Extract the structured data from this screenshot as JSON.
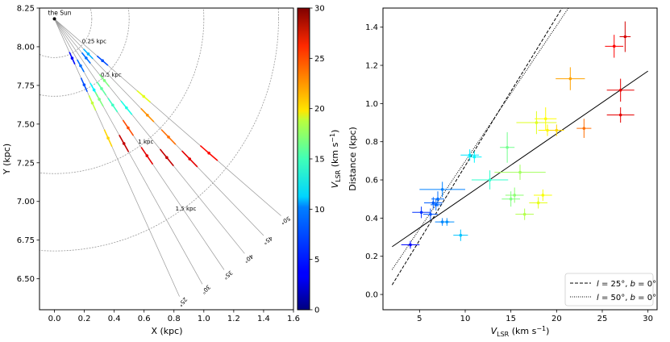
{
  "chart_data": [
    {
      "type": "scatter",
      "title": "",
      "xlabel": "X (kpc)",
      "ylabel": "Y (kpc)",
      "xlim": [
        -0.1,
        1.6
      ],
      "ylim": [
        6.3,
        8.25
      ],
      "xticks": [
        "0.0",
        "0.2",
        "0.4",
        "0.6",
        "0.8",
        "1.0",
        "1.2",
        "1.4",
        "1.6"
      ],
      "xtick_values": [
        0,
        0.2,
        0.4,
        0.6,
        0.8,
        1.0,
        1.2,
        1.4,
        1.6
      ],
      "yticks": [
        "6.50",
        "6.75",
        "7.00",
        "7.25",
        "7.50",
        "7.75",
        "8.00",
        "8.25"
      ],
      "ytick_values": [
        6.5,
        6.75,
        7.0,
        7.25,
        7.5,
        7.75,
        8.0,
        8.25
      ],
      "sun": {
        "label": "the Sun",
        "x": 0,
        "y": 8.18
      },
      "circles": [
        {
          "label": "0.25 kpc",
          "r": 0.25
        },
        {
          "label": "0.5 kpc",
          "r": 0.5
        },
        {
          "label": "1 kpc",
          "r": 1.0
        },
        {
          "label": "1.5 kpc",
          "r": 1.5
        }
      ],
      "rays": [
        {
          "label": "25°",
          "l": 25
        },
        {
          "label": "30°",
          "l": 30
        },
        {
          "label": "35°",
          "l": 35
        },
        {
          "label": "40°",
          "l": 40
        },
        {
          "label": "45°",
          "l": 45
        },
        {
          "label": "50°",
          "l": 50
        }
      ],
      "clumps": [
        {
          "l": 25,
          "d": 0.28,
          "v": 4
        },
        {
          "l": 25,
          "d": 0.47,
          "v": 6
        },
        {
          "l": 25,
          "d": 0.6,
          "v": 17
        },
        {
          "l": 25,
          "d": 0.85,
          "v": 20
        },
        {
          "l": 30,
          "d": 0.35,
          "v": 7
        },
        {
          "l": 30,
          "d": 0.53,
          "v": 11
        },
        {
          "l": 30,
          "d": 0.6,
          "v": 15
        },
        {
          "l": 30,
          "d": 0.93,
          "v": 28
        },
        {
          "l": 35,
          "d": 0.55,
          "v": 14
        },
        {
          "l": 35,
          "d": 0.68,
          "v": 13
        },
        {
          "l": 35,
          "d": 0.86,
          "v": 24
        },
        {
          "l": 35,
          "d": 1.08,
          "v": 27
        },
        {
          "l": 40,
          "d": 0.33,
          "v": 7
        },
        {
          "l": 40,
          "d": 0.52,
          "v": 15
        },
        {
          "l": 40,
          "d": 0.75,
          "v": 12
        },
        {
          "l": 40,
          "d": 1.17,
          "v": 28
        },
        {
          "l": 45,
          "d": 0.32,
          "v": 9
        },
        {
          "l": 45,
          "d": 0.88,
          "v": 22
        },
        {
          "l": 45,
          "d": 1.08,
          "v": 23
        },
        {
          "l": 45,
          "d": 1.28,
          "v": 27
        },
        {
          "l": 50,
          "d": 0.42,
          "v": 6
        },
        {
          "l": 50,
          "d": 0.78,
          "v": 18
        },
        {
          "l": 50,
          "d": 1.35,
          "v": 26
        }
      ],
      "colorbar": {
        "label_main": "V",
        "label_sub": "LSR",
        "label_unit": " (km s",
        "label_exp": "−1",
        "label_end": ")",
        "min": 0,
        "max": 30,
        "ticks": [
          "0",
          "5",
          "10",
          "15",
          "20",
          "25",
          "30"
        ],
        "tick_values": [
          0,
          5,
          10,
          15,
          20,
          25,
          30
        ]
      }
    },
    {
      "type": "scatter",
      "title": "",
      "xlabel_main": "V",
      "xlabel_sub": "LSR",
      "xlabel_unit": " (km s",
      "xlabel_exp": "−1",
      "xlabel_end": ")",
      "ylabel": "Distance (kpc)",
      "xlim": [
        1,
        31
      ],
      "ylim": [
        -0.08,
        1.5
      ],
      "xticks": [
        "5",
        "10",
        "15",
        "20",
        "25",
        "30"
      ],
      "xtick_values": [
        5,
        10,
        15,
        20,
        25,
        30
      ],
      "yticks": [
        "0.0",
        "0.2",
        "0.4",
        "0.6",
        "0.8",
        "1.0",
        "1.2",
        "1.4"
      ],
      "ytick_values": [
        0,
        0.2,
        0.4,
        0.6,
        0.8,
        1.0,
        1.2,
        1.4
      ],
      "points": [
        {
          "v": 4.0,
          "d": 0.26,
          "ev": 1.0,
          "ed": 0.02
        },
        {
          "v": 5.2,
          "d": 0.43,
          "ev": 1.0,
          "ed": 0.03
        },
        {
          "v": 6.2,
          "d": 0.42,
          "ev": 0.8,
          "ed": 0.03
        },
        {
          "v": 6.5,
          "d": 0.48,
          "ev": 1.0,
          "ed": 0.03
        },
        {
          "v": 6.8,
          "d": 0.47,
          "ev": 0.6,
          "ed": 0.03
        },
        {
          "v": 7.0,
          "d": 0.5,
          "ev": 0.7,
          "ed": 0.04
        },
        {
          "v": 7.5,
          "d": 0.55,
          "ev": 2.5,
          "ed": 0.04
        },
        {
          "v": 7.5,
          "d": 0.38,
          "ev": 0.8,
          "ed": 0.02
        },
        {
          "v": 8.0,
          "d": 0.38,
          "ev": 0.8,
          "ed": 0.02
        },
        {
          "v": 9.5,
          "d": 0.31,
          "ev": 0.8,
          "ed": 0.03
        },
        {
          "v": 10.5,
          "d": 0.73,
          "ev": 1.0,
          "ed": 0.03
        },
        {
          "v": 11.0,
          "d": 0.72,
          "ev": 0.8,
          "ed": 0.03
        },
        {
          "v": 12.7,
          "d": 0.6,
          "ev": 2.0,
          "ed": 0.05
        },
        {
          "v": 14.6,
          "d": 0.77,
          "ev": 0.8,
          "ed": 0.08
        },
        {
          "v": 15.0,
          "d": 0.5,
          "ev": 1.0,
          "ed": 0.04
        },
        {
          "v": 15.4,
          "d": 0.52,
          "ev": 1.0,
          "ed": 0.04
        },
        {
          "v": 16.0,
          "d": 0.64,
          "ev": 2.8,
          "ed": 0.04
        },
        {
          "v": 16.5,
          "d": 0.42,
          "ev": 1.0,
          "ed": 0.03
        },
        {
          "v": 17.8,
          "d": 0.9,
          "ev": 2.2,
          "ed": 0.06
        },
        {
          "v": 18.0,
          "d": 0.48,
          "ev": 1.0,
          "ed": 0.03
        },
        {
          "v": 18.5,
          "d": 0.52,
          "ev": 1.0,
          "ed": 0.03
        },
        {
          "v": 18.8,
          "d": 0.92,
          "ev": 1.2,
          "ed": 0.06
        },
        {
          "v": 19.0,
          "d": 0.86,
          "ev": 1.0,
          "ed": 0.03
        },
        {
          "v": 20.0,
          "d": 0.86,
          "ev": 0.8,
          "ed": 0.03
        },
        {
          "v": 21.5,
          "d": 1.13,
          "ev": 1.6,
          "ed": 0.06
        },
        {
          "v": 23.0,
          "d": 0.87,
          "ev": 0.8,
          "ed": 0.05
        },
        {
          "v": 26.3,
          "d": 1.3,
          "ev": 1.0,
          "ed": 0.06
        },
        {
          "v": 27.0,
          "d": 0.94,
          "ev": 1.5,
          "ed": 0.04
        },
        {
          "v": 27.0,
          "d": 1.07,
          "ev": 1.5,
          "ed": 0.06
        },
        {
          "v": 27.5,
          "d": 1.35,
          "ev": 0.6,
          "ed": 0.08
        }
      ],
      "fit_line": {
        "x0": 2,
        "y0": 0.25,
        "x1": 30,
        "y1": 1.17
      },
      "model_l25": {
        "x0": 2,
        "y0": 0.05,
        "x1": 20.6,
        "y1": 1.5
      },
      "model_l50": {
        "x0": 2,
        "y0": 0.13,
        "x1": 21.3,
        "y1": 1.5
      },
      "legend": {
        "position": "bottom-right",
        "entries": [
          {
            "style": "dashed",
            "label_l": "l",
            "label_rest": " = 25°, ",
            "label_b": "b",
            "label_end": " = 0°"
          },
          {
            "style": "dotted",
            "label_l": "l",
            "label_rest": " = 50°, ",
            "label_b": "b",
            "label_end": " = 0°"
          }
        ]
      }
    }
  ]
}
